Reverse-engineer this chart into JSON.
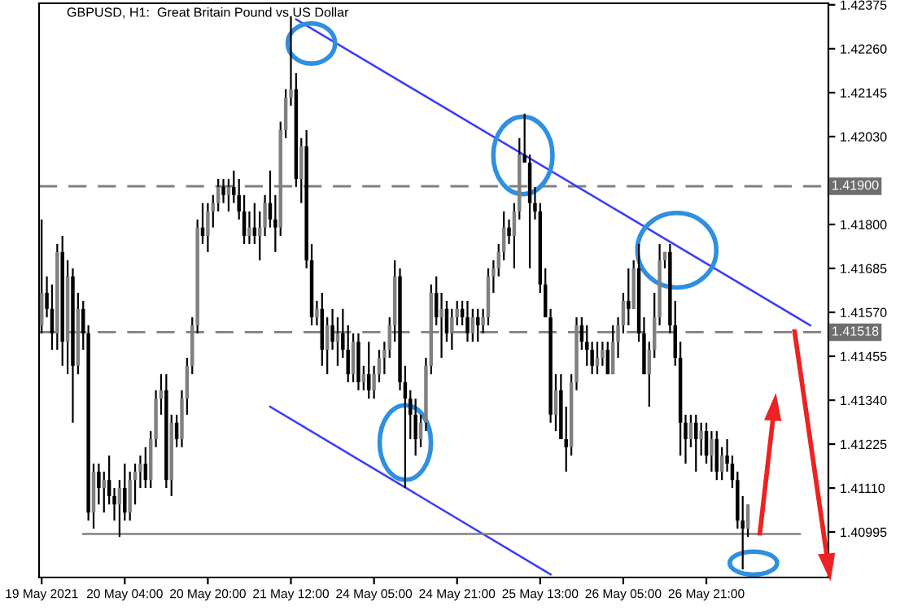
{
  "chart_data": {
    "type": "candlestick",
    "title": "GBPUSD, H1:  Great Britain Pound vs US Dollar",
    "categories": [
      "19 May 2021",
      null,
      null,
      null,
      null,
      null,
      null,
      null,
      null,
      null,
      null,
      null,
      null,
      null,
      null,
      null,
      "20 May 04:00",
      null,
      null,
      null,
      null,
      null,
      null,
      null,
      null,
      null,
      null,
      null,
      null,
      null,
      null,
      null,
      "20 May 20:00",
      null,
      null,
      null,
      null,
      null,
      null,
      null,
      null,
      null,
      null,
      null,
      null,
      null,
      null,
      null,
      "21 May 12:00",
      null,
      null,
      null,
      null,
      null,
      null,
      null,
      null,
      null,
      null,
      null,
      null,
      null,
      null,
      null,
      "24 May 05:00",
      null,
      null,
      null,
      null,
      null,
      null,
      null,
      null,
      null,
      null,
      null,
      null,
      null,
      null,
      null,
      "24 May 21:00",
      null,
      null,
      null,
      null,
      null,
      null,
      null,
      null,
      null,
      null,
      null,
      null,
      null,
      null,
      null,
      "25 May 13:00",
      null,
      null,
      null,
      null,
      null,
      null,
      null,
      null,
      null,
      null,
      null,
      null,
      null,
      null,
      null,
      "26 May 05:00",
      null,
      null,
      null,
      null,
      null,
      null,
      null,
      null,
      null,
      null,
      null,
      null,
      null,
      null,
      null,
      "26 May 21:00",
      null,
      null,
      null,
      null,
      null,
      null,
      null,
      null,
      null,
      null,
      null,
      null,
      null,
      null,
      null,
      null,
      null,
      null,
      null,
      null,
      null,
      null,
      null
    ],
    "ohlc": [
      [
        1.41536,
        1.41813,
        1.41515,
        1.41621
      ],
      [
        1.41621,
        1.41664,
        1.41557,
        1.41579
      ],
      [
        1.41579,
        1.41643,
        1.41472,
        1.41515
      ],
      [
        1.41515,
        1.41749,
        1.41472,
        1.41728
      ],
      [
        1.41728,
        1.4177,
        1.4143,
        1.41493
      ],
      [
        1.41493,
        1.41706,
        1.41408,
        1.41664
      ],
      [
        1.41664,
        1.41685,
        1.41281,
        1.4143
      ],
      [
        1.4143,
        1.41621,
        1.41408,
        1.41579
      ],
      [
        1.41579,
        1.416,
        1.41472,
        1.41515
      ],
      [
        1.41515,
        1.41536,
        1.41025,
        1.41046
      ],
      [
        1.41046,
        1.41174,
        1.41004,
        1.41153
      ],
      [
        1.41153,
        1.41174,
        1.41067,
        1.4111
      ],
      [
        1.4111,
        1.41153,
        1.41046,
        1.41131
      ],
      [
        1.41131,
        1.41195,
        1.41067,
        1.41089
      ],
      [
        1.41089,
        1.4111,
        1.41025,
        1.41067
      ],
      [
        1.41067,
        1.41131,
        1.40982,
        1.4111
      ],
      [
        1.4111,
        1.41174,
        1.41025,
        1.41046
      ],
      [
        1.41046,
        1.41153,
        1.41025,
        1.41131
      ],
      [
        1.41131,
        1.41174,
        1.41067,
        1.41153
      ],
      [
        1.41153,
        1.41195,
        1.4111,
        1.41174
      ],
      [
        1.41174,
        1.41217,
        1.4111,
        1.41131
      ],
      [
        1.41131,
        1.41259,
        1.4111,
        1.41238
      ],
      [
        1.41238,
        1.41366,
        1.41217,
        1.41344
      ],
      [
        1.41344,
        1.41408,
        1.41302,
        1.41366
      ],
      [
        1.41366,
        1.41408,
        1.4111,
        1.41131
      ],
      [
        1.41131,
        1.41302,
        1.41089,
        1.41281
      ],
      [
        1.41281,
        1.41302,
        1.41217,
        1.41238
      ],
      [
        1.41238,
        1.41366,
        1.41217,
        1.41344
      ],
      [
        1.41344,
        1.41451,
        1.41302,
        1.4143
      ],
      [
        1.4143,
        1.41557,
        1.41408,
        1.41536
      ],
      [
        1.41536,
        1.41813,
        1.41515,
        1.41792
      ],
      [
        1.41792,
        1.41856,
        1.41749,
        1.4177
      ],
      [
        1.4177,
        1.41856,
        1.41728,
        1.41834
      ],
      [
        1.41834,
        1.41877,
        1.41792,
        1.41856
      ],
      [
        1.41856,
        1.41919,
        1.41834,
        1.41898
      ],
      [
        1.41898,
        1.41919,
        1.41856,
        1.41877
      ],
      [
        1.41877,
        1.41919,
        1.41834,
        1.41898
      ],
      [
        1.41898,
        1.41941,
        1.41856,
        1.41877
      ],
      [
        1.41877,
        1.41919,
        1.41813,
        1.41834
      ],
      [
        1.41834,
        1.41877,
        1.41749,
        1.4177
      ],
      [
        1.4177,
        1.41834,
        1.41749,
        1.41792
      ],
      [
        1.41792,
        1.41856,
        1.41749,
        1.4177
      ],
      [
        1.4177,
        1.41834,
        1.41706,
        1.41792
      ],
      [
        1.41792,
        1.41877,
        1.4177,
        1.41856
      ],
      [
        1.41856,
        1.41941,
        1.41792,
        1.41813
      ],
      [
        1.41813,
        1.41877,
        1.41728,
        1.41792
      ],
      [
        1.41792,
        1.42069,
        1.4177,
        1.42047
      ],
      [
        1.42047,
        1.42154,
        1.42026,
        1.42132
      ],
      [
        1.42132,
        1.42345,
        1.42111,
        1.42154
      ],
      [
        1.42154,
        1.42196,
        1.41898,
        1.41919
      ],
      [
        1.41919,
        1.42026,
        1.41856,
        1.42005
      ],
      [
        1.42005,
        1.42047,
        1.41685,
        1.41706
      ],
      [
        1.41706,
        1.41749,
        1.41536,
        1.41557
      ],
      [
        1.41557,
        1.416,
        1.41536,
        1.41579
      ],
      [
        1.41579,
        1.41621,
        1.4143,
        1.41472
      ],
      [
        1.41472,
        1.41557,
        1.41408,
        1.41536
      ],
      [
        1.41536,
        1.41579,
        1.41472,
        1.41493
      ],
      [
        1.41493,
        1.41557,
        1.4143,
        1.41515
      ],
      [
        1.41515,
        1.41579,
        1.41451,
        1.41472
      ],
      [
        1.41472,
        1.41536,
        1.41387,
        1.41408
      ],
      [
        1.41408,
        1.41515,
        1.41387,
        1.41493
      ],
      [
        1.41493,
        1.41515,
        1.41366,
        1.41387
      ],
      [
        1.41387,
        1.4143,
        1.41366,
        1.41408
      ],
      [
        1.41408,
        1.41493,
        1.41344,
        1.41366
      ],
      [
        1.41366,
        1.4143,
        1.41344,
        1.41408
      ],
      [
        1.41408,
        1.41472,
        1.41387,
        1.41451
      ],
      [
        1.41451,
        1.41493,
        1.41408,
        1.41472
      ],
      [
        1.41472,
        1.41557,
        1.41451,
        1.41536
      ],
      [
        1.41536,
        1.41706,
        1.41493,
        1.41664
      ],
      [
        1.41664,
        1.41685,
        1.41366,
        1.41387
      ],
      [
        1.41387,
        1.4143,
        1.4111,
        1.41344
      ],
      [
        1.41344,
        1.41366,
        1.41238,
        1.41302
      ],
      [
        1.41302,
        1.41344,
        1.41195,
        1.41238
      ],
      [
        1.41238,
        1.41302,
        1.41217,
        1.41281
      ],
      [
        1.41281,
        1.41451,
        1.41259,
        1.4143
      ],
      [
        1.4143,
        1.41643,
        1.41408,
        1.41621
      ],
      [
        1.41621,
        1.41664,
        1.41536,
        1.41557
      ],
      [
        1.41557,
        1.41621,
        1.41451,
        1.41579
      ],
      [
        1.41579,
        1.416,
        1.41493,
        1.41515
      ],
      [
        1.41515,
        1.41579,
        1.41472,
        1.41557
      ],
      [
        1.41557,
        1.416,
        1.41536,
        1.41579
      ],
      [
        1.41579,
        1.416,
        1.41536,
        1.41557
      ],
      [
        1.41557,
        1.416,
        1.41493,
        1.41515
      ],
      [
        1.41515,
        1.41579,
        1.41493,
        1.41557
      ],
      [
        1.41557,
        1.41579,
        1.41493,
        1.41536
      ],
      [
        1.41536,
        1.41579,
        1.41515,
        1.41557
      ],
      [
        1.41557,
        1.41685,
        1.41536,
        1.41664
      ],
      [
        1.41664,
        1.41706,
        1.41621,
        1.41685
      ],
      [
        1.41685,
        1.41749,
        1.41664,
        1.41728
      ],
      [
        1.41728,
        1.41834,
        1.41706,
        1.41792
      ],
      [
        1.41792,
        1.41813,
        1.41749,
        1.4177
      ],
      [
        1.4177,
        1.41856,
        1.41685,
        1.41834
      ],
      [
        1.41834,
        1.42026,
        1.41813,
        1.41983
      ],
      [
        1.41983,
        1.4209,
        1.41962,
        1.41962
      ],
      [
        1.41962,
        1.41983,
        1.41685,
        1.41856
      ],
      [
        1.41856,
        1.41898,
        1.41813,
        1.41834
      ],
      [
        1.41834,
        1.41856,
        1.41621,
        1.41643
      ],
      [
        1.41643,
        1.41685,
        1.41557,
        1.41557
      ],
      [
        1.41557,
        1.41579,
        1.41281,
        1.41302
      ],
      [
        1.41302,
        1.41408,
        1.41259,
        1.41366
      ],
      [
        1.41366,
        1.41408,
        1.41238,
        1.41238
      ],
      [
        1.41238,
        1.41323,
        1.41153,
        1.41217
      ],
      [
        1.41217,
        1.41408,
        1.41195,
        1.41387
      ],
      [
        1.41387,
        1.41557,
        1.41366,
        1.41536
      ],
      [
        1.41536,
        1.41557,
        1.41472,
        1.41493
      ],
      [
        1.41493,
        1.41536,
        1.4143,
        1.41472
      ],
      [
        1.41472,
        1.41493,
        1.41408,
        1.4143
      ],
      [
        1.4143,
        1.41493,
        1.41408,
        1.41451
      ],
      [
        1.41451,
        1.41493,
        1.4143,
        1.41472
      ],
      [
        1.41472,
        1.41493,
        1.41408,
        1.41408
      ],
      [
        1.41408,
        1.41536,
        1.41408,
        1.41493
      ],
      [
        1.41493,
        1.41557,
        1.41451,
        1.41536
      ],
      [
        1.41536,
        1.41621,
        1.41515,
        1.416
      ],
      [
        1.416,
        1.41685,
        1.41536,
        1.41579
      ],
      [
        1.41579,
        1.41706,
        1.41579,
        1.41685
      ],
      [
        1.41685,
        1.41749,
        1.41493,
        1.41515
      ],
      [
        1.41515,
        1.41557,
        1.41408,
        1.41408
      ],
      [
        1.41408,
        1.41493,
        1.41323,
        1.41472
      ],
      [
        1.41472,
        1.41621,
        1.41451,
        1.41557
      ],
      [
        1.41557,
        1.41749,
        1.41536,
        1.41706
      ],
      [
        1.41706,
        1.41728,
        1.41685,
        1.41728
      ],
      [
        1.41728,
        1.41749,
        1.41515,
        1.41536
      ],
      [
        1.41536,
        1.416,
        1.4143,
        1.41451
      ],
      [
        1.41451,
        1.41493,
        1.41195,
        1.41281
      ],
      [
        1.41281,
        1.41302,
        1.41174,
        1.41238
      ],
      [
        1.41238,
        1.41302,
        1.41217,
        1.41281
      ],
      [
        1.41281,
        1.41302,
        1.41153,
        1.41238
      ],
      [
        1.41238,
        1.41281,
        1.41195,
        1.41259
      ],
      [
        1.41259,
        1.41281,
        1.41174,
        1.41195
      ],
      [
        1.41195,
        1.41259,
        1.41153,
        1.41238
      ],
      [
        1.41238,
        1.41259,
        1.41131,
        1.41153
      ],
      [
        1.41153,
        1.41217,
        1.41131,
        1.41195
      ],
      [
        1.41195,
        1.41238,
        1.41153,
        1.41174
      ],
      [
        1.41174,
        1.41195,
        1.4111,
        1.41131
      ],
      [
        1.41131,
        1.41153,
        1.41004,
        1.41025
      ],
      [
        1.41025,
        1.41089,
        1.40897,
        1.41004
      ],
      [
        1.41004,
        1.41067,
        1.40982,
        1.41067
      ],
      null,
      null,
      null,
      null,
      null,
      null,
      null,
      null,
      null,
      null,
      null,
      null,
      null,
      null,
      null
    ],
    "colors": [
      "#808080",
      "#000000",
      "#000000",
      "#808080",
      "#000000",
      "#808080",
      "#000000",
      "#808080",
      "#000000",
      "#000000",
      "#808080",
      "#000000",
      "#808080",
      "#000000",
      "#000000",
      "#808080",
      "#000000",
      "#808080",
      "#808080",
      "#808080",
      "#000000",
      "#808080",
      "#808080",
      "#808080",
      "#000000",
      "#808080",
      "#000000",
      "#808080",
      "#808080",
      "#808080",
      "#808080",
      "#000000",
      "#808080",
      "#808080",
      "#808080",
      "#000000",
      "#808080",
      "#000000",
      "#000000",
      "#000000",
      "#808080",
      "#000000",
      "#808080",
      "#808080",
      "#000000",
      "#000000",
      "#808080",
      "#808080",
      "#808080",
      "#000000",
      "#808080",
      "#000000",
      "#000000",
      "#808080",
      "#000000",
      "#808080",
      "#000000",
      "#808080",
      "#000000",
      "#000000",
      "#808080",
      "#000000",
      "#808080",
      "#000000",
      "#808080",
      "#808080",
      "#808080",
      "#808080",
      "#808080",
      "#000000",
      "#000000",
      "#000000",
      "#000000",
      "#808080",
      "#808080",
      "#808080",
      "#000000",
      "#808080",
      "#000000",
      "#808080",
      "#808080",
      "#000000",
      "#000000",
      "#808080",
      "#000000",
      "#808080",
      "#808080",
      "#808080",
      "#808080",
      "#808080",
      "#000000",
      "#808080",
      "#808080",
      "#000000",
      "#000000",
      "#000000",
      "#000000",
      "#000000",
      "#000000",
      "#808080",
      "#000000",
      "#000000",
      "#808080",
      "#808080",
      "#000000",
      "#000000",
      "#000000",
      "#808080",
      "#808080",
      "#000000",
      "#808080",
      "#808080",
      "#808080",
      "#000000",
      "#808080",
      "#000000",
      "#000000",
      "#808080",
      "#808080",
      "#808080",
      "#808080",
      "#000000",
      "#000000",
      "#000000",
      "#000000",
      "#808080",
      "#000000",
      "#808080",
      "#000000",
      "#808080",
      "#000000",
      "#808080",
      "#000000",
      "#000000",
      "#000000",
      "#000000",
      "#808080",
      null,
      null,
      null,
      null,
      null,
      null,
      null,
      null,
      null,
      null,
      null,
      null,
      null,
      null,
      null
    ],
    "series": [
      {
        "type": "line",
        "color": "#3b3bff",
        "values": [
          null,
          null,
          null,
          null,
          null,
          null,
          null,
          null,
          null,
          null,
          null,
          null,
          null,
          null,
          null,
          null,
          null,
          null,
          null,
          null,
          null,
          null,
          null,
          null,
          null,
          null,
          null,
          null,
          null,
          null,
          null,
          null,
          null,
          null,
          null,
          null,
          null,
          null,
          null,
          null,
          null,
          null,
          null,
          null,
          null,
          null,
          null,
          null,
          null,
          1.42337,
          null,
          null,
          null,
          null,
          null,
          null,
          null,
          null,
          null,
          null,
          null,
          null,
          null,
          null,
          null,
          null,
          null,
          null,
          null,
          null,
          null,
          null,
          null,
          null,
          null,
          null,
          null,
          null,
          null,
          null,
          null,
          null,
          null,
          null,
          null,
          null,
          null,
          null,
          null,
          null,
          null,
          null,
          null,
          null,
          null,
          null,
          null,
          null,
          null,
          null,
          null,
          null,
          null,
          null,
          null,
          null,
          null,
          null,
          null,
          null,
          null,
          null,
          null,
          null,
          null,
          null,
          null,
          null,
          null,
          null,
          null,
          null,
          null,
          null,
          null,
          null,
          null,
          null,
          null,
          null,
          null,
          null,
          null,
          null,
          null,
          null,
          null,
          null,
          null,
          null,
          null,
          null,
          null,
          null,
          null,
          null,
          null,
          null,
          1.41536,
          null,
          null,
          null
        ]
      },
      {
        "type": "line",
        "color": "#3b3bff",
        "values": [
          null,
          null,
          null,
          null,
          null,
          null,
          null,
          null,
          null,
          null,
          null,
          null,
          null,
          null,
          null,
          null,
          null,
          null,
          null,
          null,
          null,
          null,
          null,
          null,
          null,
          null,
          null,
          null,
          null,
          null,
          null,
          null,
          null,
          null,
          null,
          null,
          null,
          null,
          null,
          null,
          null,
          null,
          null,
          null,
          1.41323,
          null,
          null,
          null,
          null,
          null,
          null,
          null,
          null,
          null,
          null,
          null,
          null,
          null,
          null,
          null,
          null,
          null,
          null,
          null,
          null,
          null,
          null,
          null,
          null,
          null,
          null,
          null,
          null,
          null,
          null,
          null,
          null,
          null,
          null,
          null,
          null,
          null,
          null,
          null,
          null,
          null,
          null,
          null,
          null,
          null,
          null,
          null,
          null,
          null,
          null,
          null,
          null,
          null,
          1.40884,
          null,
          null,
          null,
          null,
          null,
          null,
          null,
          null,
          null,
          null,
          null,
          null,
          null,
          null,
          null,
          null,
          null,
          null,
          null,
          null,
          null,
          null,
          null,
          null,
          null,
          null,
          null,
          null,
          null,
          null,
          null,
          null,
          null,
          null,
          null,
          null,
          null,
          null,
          null,
          null,
          null,
          null,
          null,
          null,
          null,
          null,
          null,
          null,
          null,
          null,
          null,
          null,
          null
        ]
      },
      {
        "type": "line",
        "color": "#808080",
        "values": [
          null,
          null,
          null,
          null,
          null,
          null,
          null,
          null,
          1.4099,
          null,
          null,
          null,
          null,
          null,
          null,
          null,
          null,
          null,
          null,
          null,
          null,
          null,
          null,
          null,
          null,
          null,
          null,
          null,
          null,
          null,
          null,
          null,
          null,
          null,
          null,
          null,
          null,
          null,
          null,
          null,
          null,
          null,
          null,
          null,
          null,
          null,
          null,
          null,
          null,
          null,
          null,
          null,
          null,
          null,
          null,
          null,
          null,
          null,
          null,
          null,
          null,
          null,
          null,
          null,
          null,
          null,
          null,
          null,
          null,
          null,
          null,
          null,
          null,
          null,
          null,
          null,
          null,
          null,
          null,
          null,
          null,
          null,
          null,
          null,
          null,
          null,
          null,
          null,
          null,
          null,
          null,
          null,
          null,
          null,
          null,
          null,
          null,
          null,
          null,
          null,
          null,
          null,
          null,
          null,
          null,
          null,
          null,
          null,
          null,
          null,
          null,
          null,
          null,
          null,
          null,
          null,
          null,
          null,
          null,
          null,
          null,
          null,
          null,
          null,
          null,
          null,
          null,
          null,
          null,
          null,
          null,
          null,
          null,
          null,
          null,
          null,
          null,
          null,
          null,
          null,
          null,
          null,
          null,
          null,
          null,
          null,
          1.4099,
          null,
          null,
          null,
          null,
          null
        ]
      }
    ],
    "ylim": [
      1.40876,
      1.42379
    ],
    "yticks": [
      1.42375,
      {
        "value": 1.4226,
        "label": "1.42260"
      },
      1.42145,
      {
        "value": 1.4203,
        "label": "1.42030"
      },
      {
        "value": 1.418,
        "label": "1.41800"
      },
      1.41685,
      {
        "value": 1.4157,
        "label": "1.41570"
      },
      1.41455,
      {
        "value": 1.4134,
        "label": "1.41340"
      },
      1.41225,
      {
        "value": 1.4111,
        "label": "1.41110"
      },
      1.40995
    ],
    "ref_lines": [
      {
        "axis": "y",
        "value": 1.419,
        "label": "1.41900",
        "color": "#808080",
        "line_style": "dashed"
      },
      {
        "axis": "y",
        "value": 1.41518,
        "label": "1.41518",
        "color": "#808080",
        "line_style": "dashed"
      }
    ],
    "grid": false,
    "legend": false
  }
}
